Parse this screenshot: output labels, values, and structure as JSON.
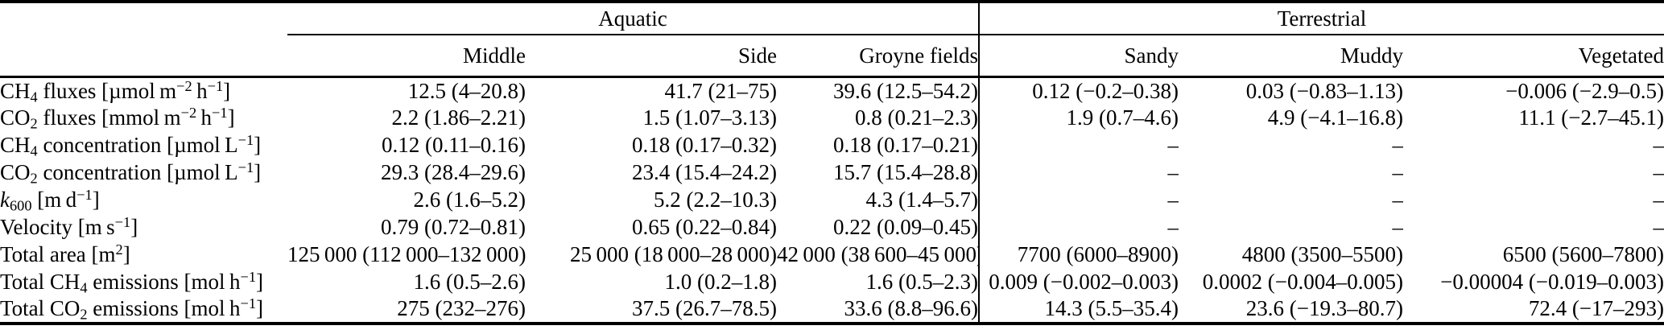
{
  "table": {
    "col_groups": [
      {
        "label": "Aquatic",
        "columns": [
          "Middle",
          "Side",
          "Groyne fields"
        ]
      },
      {
        "label": "Terrestrial",
        "columns": [
          "Sandy",
          "Muddy",
          "Vegetated"
        ]
      }
    ],
    "rows": [
      {
        "label": "CH_4_ fluxes [µmol m^−2^ h^−1^]",
        "values": [
          "12.5 (4–20.8)",
          "41.7 (21–75)",
          "39.6 (12.5–54.2)",
          "0.12 (−0.2–0.38)",
          "0.03 (−0.83–1.13)",
          "−0.006 (−2.9–0.5)"
        ]
      },
      {
        "label": "CO_2_ fluxes [mmol m^−2^ h^−1^]",
        "values": [
          "2.2 (1.86–2.21)",
          "1.5 (1.07–3.13)",
          "0.8 (0.21–2.3)",
          "1.9 (0.7–4.6)",
          "4.9 (−4.1–16.8)",
          "11.1 (−2.7–45.1)"
        ]
      },
      {
        "label": "CH_4_ concentration [µmol L^−1^]",
        "values": [
          "0.12 (0.11–0.16)",
          "0.18 (0.17–0.32)",
          "0.18 (0.17–0.21)",
          "–",
          "–",
          "–"
        ]
      },
      {
        "label": "CO_2_ concentration [µmol L^−1^]",
        "values": [
          "29.3 (28.4–29.6)",
          "23.4 (15.4–24.2)",
          "15.7 (15.4–28.8)",
          "–",
          "–",
          "–"
        ]
      },
      {
        "label": "*k*_600_ [m d^−1^]",
        "values": [
          "2.6 (1.6–5.2)",
          "5.2 (2.2–10.3)",
          "4.3 (1.4–5.7)",
          "–",
          "–",
          "–"
        ]
      },
      {
        "label": "Velocity [m s^−1^]",
        "values": [
          "0.79 (0.72–0.81)",
          "0.65 (0.22–0.84)",
          "0.22 (0.09–0.45)",
          "–",
          "–",
          "–"
        ]
      },
      {
        "label": "Total area [m^2^]",
        "values": [
          "125 000 (112 000–132 000)",
          "25 000 (18 000–28 000)",
          "42 000 (38 600–45 000)",
          "7700 (6000–8900)",
          "4800 (3500–5500)",
          "6500 (5600–7800)"
        ]
      },
      {
        "label": "Total CH_4_ emissions [mol h^−1^]",
        "values": [
          "1.6 (0.5–2.6)",
          "1.0 (0.2–1.8)",
          "1.6 (0.5–2.3)",
          "0.009 (−0.002–0.003)",
          "0.0002 (−0.004–0.005)",
          "−0.00004 (−0.019–0.003)"
        ]
      },
      {
        "label": "Total CO_2_ emissions [mol h^−1^]",
        "values": [
          "275 (232–276)",
          "37.5 (26.7–78.5)",
          "33.6 (8.8–96.6)",
          "14.3 (5.5–35.4)",
          "23.6 (−19.3–80.7)",
          "72.4 (−17–293)"
        ]
      }
    ]
  }
}
